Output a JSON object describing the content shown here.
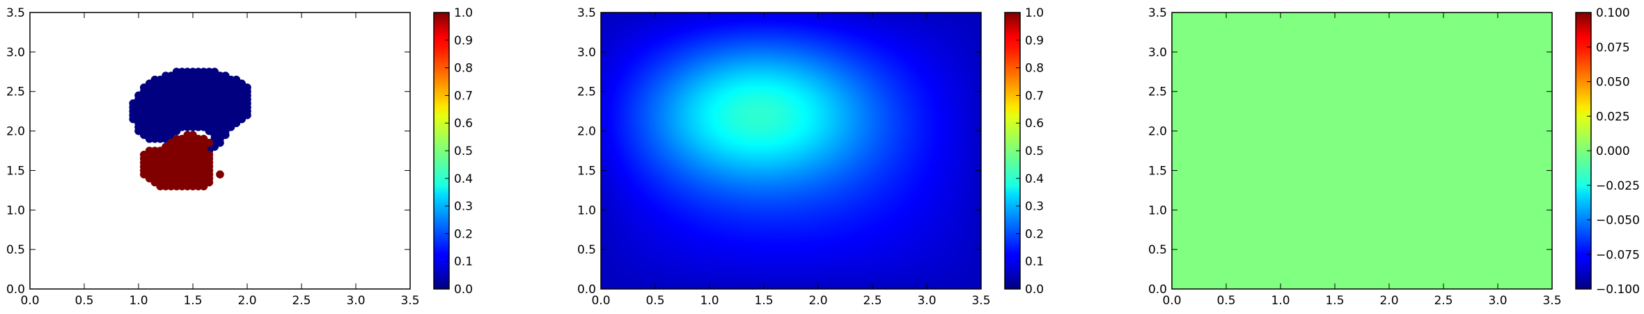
{
  "chart_data": [
    {
      "type": "scatter",
      "xlim": [
        0,
        3.5
      ],
      "ylim": [
        0,
        3.5
      ],
      "xticks": [
        "0.0",
        "0.5",
        "1.0",
        "1.5",
        "2.0",
        "2.5",
        "3.0",
        "3.5"
      ],
      "yticks": [
        "0.0",
        "0.5",
        "1.0",
        "1.5",
        "2.0",
        "2.5",
        "3.0",
        "3.5"
      ],
      "grid": false,
      "colormap": "jet",
      "colorbar": {
        "range": [
          0,
          1
        ],
        "ticks": [
          "0.0",
          "0.1",
          "0.2",
          "0.3",
          "0.4",
          "0.5",
          "0.6",
          "0.7",
          "0.8",
          "0.9",
          "1.0"
        ]
      },
      "series": [
        {
          "value": 0.0,
          "color": "#000080",
          "rows": [
            {
              "y": 2.75,
              "x": [
                1.35,
                1.4,
                1.45,
                1.5,
                1.55,
                1.6,
                1.65,
                1.7
              ]
            },
            {
              "y": 2.7,
              "x": [
                1.25,
                1.3,
                1.35,
                1.4,
                1.45,
                1.5,
                1.55,
                1.6,
                1.65,
                1.7,
                1.75,
                1.8
              ]
            },
            {
              "y": 2.65,
              "x": [
                1.15,
                1.2,
                1.25,
                1.3,
                1.35,
                1.4,
                1.45,
                1.5,
                1.55,
                1.6,
                1.65,
                1.7,
                1.75,
                1.8,
                1.85,
                1.9
              ]
            },
            {
              "y": 2.6,
              "x": [
                1.1,
                1.15,
                1.2,
                1.25,
                1.3,
                1.35,
                1.4,
                1.45,
                1.5,
                1.55,
                1.6,
                1.65,
                1.7,
                1.75,
                1.8,
                1.85,
                1.9,
                1.95
              ]
            },
            {
              "y": 2.55,
              "x": [
                1.05,
                1.1,
                1.15,
                1.2,
                1.25,
                1.3,
                1.35,
                1.4,
                1.45,
                1.5,
                1.55,
                1.6,
                1.65,
                1.7,
                1.75,
                1.8,
                1.85,
                1.9,
                1.95,
                2.0
              ]
            },
            {
              "y": 2.5,
              "x": [
                1.05,
                1.1,
                1.15,
                1.2,
                1.25,
                1.3,
                1.35,
                1.4,
                1.45,
                1.5,
                1.55,
                1.6,
                1.65,
                1.7,
                1.75,
                1.8,
                1.85,
                1.9,
                1.95,
                2.0
              ]
            },
            {
              "y": 2.45,
              "x": [
                1.0,
                1.05,
                1.1,
                1.15,
                1.2,
                1.25,
                1.3,
                1.35,
                1.4,
                1.45,
                1.5,
                1.55,
                1.6,
                1.65,
                1.7,
                1.75,
                1.8,
                1.85,
                1.9,
                1.95,
                2.0
              ]
            },
            {
              "y": 2.4,
              "x": [
                1.0,
                1.05,
                1.1,
                1.15,
                1.2,
                1.25,
                1.3,
                1.35,
                1.4,
                1.45,
                1.5,
                1.55,
                1.6,
                1.65,
                1.7,
                1.75,
                1.8,
                1.85,
                1.9,
                1.95,
                2.0
              ]
            },
            {
              "y": 2.35,
              "x": [
                0.95,
                1.0,
                1.05,
                1.1,
                1.15,
                1.2,
                1.25,
                1.3,
                1.35,
                1.4,
                1.45,
                1.5,
                1.55,
                1.6,
                1.65,
                1.7,
                1.75,
                1.8,
                1.85,
                1.9,
                1.95,
                2.0
              ]
            },
            {
              "y": 2.3,
              "x": [
                0.95,
                1.0,
                1.05,
                1.1,
                1.15,
                1.2,
                1.25,
                1.3,
                1.35,
                1.4,
                1.45,
                1.5,
                1.55,
                1.6,
                1.65,
                1.7,
                1.75,
                1.8,
                1.85,
                1.9,
                1.95,
                2.0
              ]
            },
            {
              "y": 2.25,
              "x": [
                0.95,
                1.0,
                1.05,
                1.1,
                1.15,
                1.2,
                1.25,
                1.3,
                1.35,
                1.4,
                1.45,
                1.5,
                1.55,
                1.6,
                1.65,
                1.7,
                1.75,
                1.8,
                1.85,
                1.9,
                1.95,
                2.0
              ]
            },
            {
              "y": 2.2,
              "x": [
                0.95,
                1.0,
                1.05,
                1.1,
                1.15,
                1.2,
                1.25,
                1.3,
                1.35,
                1.4,
                1.45,
                1.5,
                1.55,
                1.6,
                1.65,
                1.7,
                1.75,
                1.8,
                1.85,
                1.9,
                1.95,
                2.0
              ]
            },
            {
              "y": 2.15,
              "x": [
                0.95,
                1.0,
                1.05,
                1.1,
                1.15,
                1.2,
                1.25,
                1.3,
                1.35,
                1.4,
                1.45,
                1.5,
                1.55,
                1.6,
                1.65,
                1.7,
                1.75,
                1.8,
                1.85,
                1.9,
                1.95
              ]
            },
            {
              "y": 2.1,
              "x": [
                1.0,
                1.05,
                1.1,
                1.15,
                1.2,
                1.25,
                1.3,
                1.35,
                1.4,
                1.45,
                1.5,
                1.55,
                1.6,
                1.65,
                1.7,
                1.75,
                1.8,
                1.85,
                1.9
              ]
            },
            {
              "y": 2.05,
              "x": [
                1.0,
                1.05,
                1.1,
                1.15,
                1.2,
                1.25,
                1.3,
                1.35,
                1.4,
                1.45,
                1.5,
                1.55,
                1.6,
                1.65,
                1.7,
                1.75,
                1.8,
                1.85
              ]
            },
            {
              "y": 2.0,
              "x": [
                1.0,
                1.05,
                1.1,
                1.15,
                1.2,
                1.25,
                1.3,
                1.35,
                1.65,
                1.7,
                1.75,
                1.8
              ]
            },
            {
              "y": 1.95,
              "x": [
                1.05,
                1.1,
                1.15,
                1.2,
                1.25,
                1.3,
                1.7,
                1.75,
                1.8
              ]
            },
            {
              "y": 1.9,
              "x": [
                1.1,
                1.15,
                1.2,
                1.25,
                1.7,
                1.75
              ]
            },
            {
              "y": 1.85,
              "x": [
                1.7,
                1.75
              ]
            },
            {
              "y": 1.8,
              "x": [
                1.65,
                1.7
              ]
            },
            {
              "y": 1.75,
              "x": [
                1.65
              ]
            }
          ]
        },
        {
          "value": 1.0,
          "color": "#800000",
          "rows": [
            {
              "y": 1.95,
              "x": [
                1.45,
                1.5
              ]
            },
            {
              "y": 1.9,
              "x": [
                1.35,
                1.4,
                1.45,
                1.5,
                1.55,
                1.6
              ]
            },
            {
              "y": 1.85,
              "x": [
                1.3,
                1.35,
                1.4,
                1.45,
                1.5,
                1.55,
                1.6,
                1.65
              ]
            },
            {
              "y": 1.8,
              "x": [
                1.25,
                1.3,
                1.35,
                1.4,
                1.45,
                1.5,
                1.55,
                1.6
              ]
            },
            {
              "y": 1.75,
              "x": [
                1.1,
                1.15,
                1.2,
                1.25,
                1.3,
                1.35,
                1.4,
                1.45,
                1.5,
                1.55,
                1.6
              ]
            },
            {
              "y": 1.7,
              "x": [
                1.05,
                1.1,
                1.15,
                1.2,
                1.25,
                1.3,
                1.35,
                1.4,
                1.45,
                1.5,
                1.55,
                1.6,
                1.65
              ]
            },
            {
              "y": 1.65,
              "x": [
                1.05,
                1.1,
                1.15,
                1.2,
                1.25,
                1.3,
                1.35,
                1.4,
                1.45,
                1.5,
                1.55,
                1.6,
                1.65
              ]
            },
            {
              "y": 1.6,
              "x": [
                1.05,
                1.1,
                1.15,
                1.2,
                1.25,
                1.3,
                1.35,
                1.4,
                1.45,
                1.5,
                1.55,
                1.6,
                1.65
              ]
            },
            {
              "y": 1.55,
              "x": [
                1.05,
                1.1,
                1.15,
                1.2,
                1.25,
                1.3,
                1.35,
                1.4,
                1.45,
                1.5,
                1.55,
                1.6,
                1.65
              ]
            },
            {
              "y": 1.5,
              "x": [
                1.05,
                1.1,
                1.15,
                1.2,
                1.25,
                1.3,
                1.35,
                1.4,
                1.45,
                1.5,
                1.55,
                1.6,
                1.65
              ]
            },
            {
              "y": 1.45,
              "x": [
                1.05,
                1.1,
                1.15,
                1.2,
                1.25,
                1.3,
                1.35,
                1.4,
                1.45,
                1.5,
                1.55,
                1.6,
                1.65,
                1.75
              ]
            },
            {
              "y": 1.4,
              "x": [
                1.1,
                1.15,
                1.2,
                1.25,
                1.3,
                1.35,
                1.4,
                1.45,
                1.5,
                1.55,
                1.6,
                1.65
              ]
            },
            {
              "y": 1.35,
              "x": [
                1.15,
                1.2,
                1.25,
                1.3,
                1.35,
                1.4,
                1.45,
                1.5,
                1.55,
                1.6,
                1.65
              ]
            },
            {
              "y": 1.3,
              "x": [
                1.2,
                1.25,
                1.3,
                1.35,
                1.4,
                1.45,
                1.5,
                1.55,
                1.6
              ]
            }
          ]
        }
      ]
    },
    {
      "type": "heatmap",
      "xlim": [
        0,
        3.5
      ],
      "ylim": [
        0,
        3.5
      ],
      "xticks": [
        "0.0",
        "0.5",
        "1.0",
        "1.5",
        "2.0",
        "2.5",
        "3.0",
        "3.5"
      ],
      "yticks": [
        "0.0",
        "0.5",
        "1.0",
        "1.5",
        "2.0",
        "2.5",
        "3.0",
        "3.5"
      ],
      "grid": false,
      "colormap": "jet",
      "colorbar": {
        "range": [
          0,
          1
        ],
        "ticks": [
          "0.0",
          "0.1",
          "0.2",
          "0.3",
          "0.4",
          "0.5",
          "0.6",
          "0.7",
          "0.8",
          "0.9",
          "1.0"
        ]
      },
      "field": {
        "peak_x": 1.45,
        "peak_y": 2.2,
        "peak_value": 0.42,
        "edge_value": 0.06
      }
    },
    {
      "type": "heatmap",
      "xlim": [
        0,
        3.5
      ],
      "ylim": [
        0,
        3.5
      ],
      "xticks": [
        "0.0",
        "0.5",
        "1.0",
        "1.5",
        "2.0",
        "2.5",
        "3.0",
        "3.5"
      ],
      "yticks": [
        "0.0",
        "0.5",
        "1.0",
        "1.5",
        "2.0",
        "2.5",
        "3.0",
        "3.5"
      ],
      "grid": false,
      "colormap": "jet",
      "colorbar": {
        "range": [
          -0.1,
          0.1
        ],
        "ticks": [
          "−0.100",
          "−0.075",
          "−0.050",
          "−0.025",
          "0.000",
          "0.025",
          "0.050",
          "0.075",
          "0.100"
        ]
      },
      "field": {
        "constant_value": 0.0
      }
    }
  ]
}
